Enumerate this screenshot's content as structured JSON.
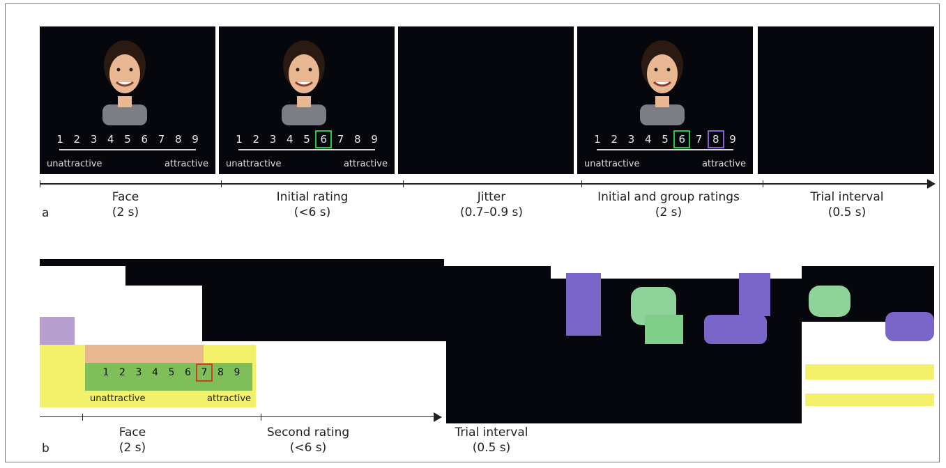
{
  "panel_a": {
    "letter": "a",
    "scale_numbers": [
      "1",
      "2",
      "3",
      "4",
      "5",
      "6",
      "7",
      "8",
      "9"
    ],
    "anchor_left": "unattractive",
    "anchor_right": "attractive",
    "steps": [
      {
        "name": "Face",
        "time": "(2 s)"
      },
      {
        "name": "Initial rating",
        "time": "(<6 s)"
      },
      {
        "name": "Jitter",
        "time": "(0.7–0.9 s)"
      },
      {
        "name": "Initial and group ratings",
        "time": "(2 s)"
      },
      {
        "name": "Trial interval",
        "time": "(0.5 s)"
      }
    ],
    "initial_rating_highlight": "6",
    "group_rating_highlight": "8"
  },
  "panel_b": {
    "letter": "b",
    "scale_numbers": [
      "1",
      "2",
      "3",
      "4",
      "5",
      "6",
      "7",
      "8",
      "9"
    ],
    "anchor_left": "unattractive",
    "anchor_right": "attractive",
    "second_rating_highlight": "7",
    "steps": [
      {
        "name": "Face",
        "time": "(2 s)"
      },
      {
        "name": "Second rating",
        "time": "(<6 s)"
      },
      {
        "name": "Trial interval",
        "time": "(0.5 s)"
      }
    ]
  },
  "colors": {
    "screen": "#05070c",
    "initial": "#22c84a",
    "group": "#8a5fd0",
    "second": "#d43a2a",
    "glitch_green": "#7fbf5a",
    "glitch_yellow": "#f3f06a",
    "glitch_purple": "#7a66c9"
  }
}
